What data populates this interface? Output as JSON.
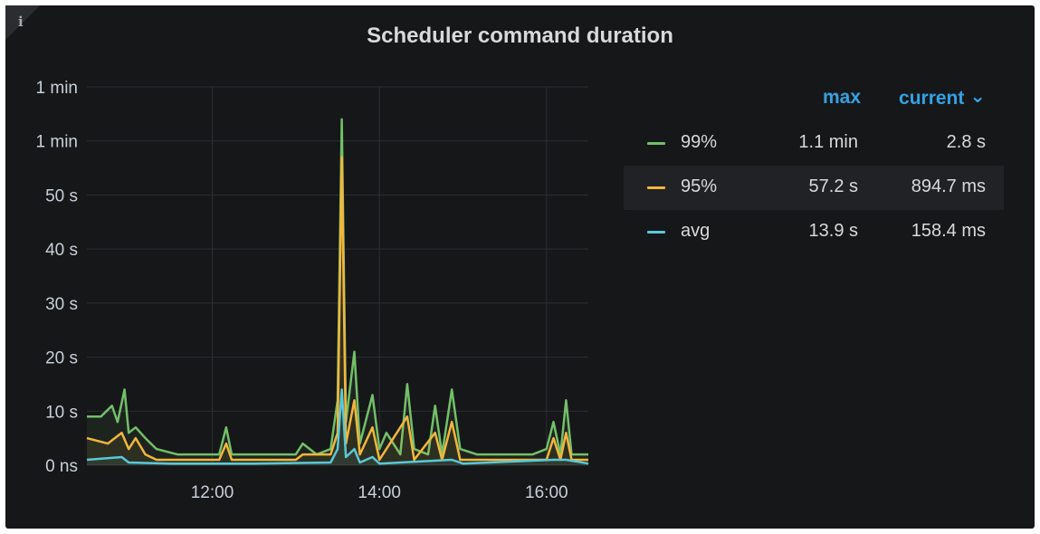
{
  "panel": {
    "title": "Scheduler command duration",
    "info_icon": "i"
  },
  "legend": {
    "headers": {
      "max": "max",
      "current": "current"
    },
    "sort_icon": "chevron-down-icon",
    "rows": [
      {
        "name": "99%",
        "color": "#73bf69",
        "max": "1.1 min",
        "current": "2.8 s"
      },
      {
        "name": "95%",
        "color": "#f2b63c",
        "max": "57.2 s",
        "current": "894.7 ms"
      },
      {
        "name": "avg",
        "color": "#5ac8d8",
        "max": "13.9 s",
        "current": "158.4 ms"
      }
    ]
  },
  "chart_data": {
    "type": "line",
    "y_tick_labels": [
      "0 ns",
      "10 s",
      "20 s",
      "30 s",
      "40 s",
      "50 s",
      "1 min",
      "1 min"
    ],
    "x_tick_labels": [
      "12:00",
      "14:00",
      "16:00"
    ],
    "x_range": [
      "10:30",
      "16:30"
    ],
    "ylim_seconds": [
      0,
      70
    ],
    "grid": true,
    "legend_placement": "right",
    "series": [
      {
        "name": "99%",
        "color": "#73bf69",
        "points": [
          [
            "10:30",
            9
          ],
          [
            "10:40",
            9
          ],
          [
            "10:48",
            11
          ],
          [
            "10:52",
            8
          ],
          [
            "10:57",
            14
          ],
          [
            "11:00",
            6
          ],
          [
            "11:05",
            7
          ],
          [
            "11:12",
            5
          ],
          [
            "11:20",
            3
          ],
          [
            "11:35",
            2
          ],
          [
            "11:50",
            2
          ],
          [
            "12:05",
            2
          ],
          [
            "12:10",
            7
          ],
          [
            "12:14",
            2
          ],
          [
            "12:30",
            2
          ],
          [
            "12:50",
            2
          ],
          [
            "13:00",
            2
          ],
          [
            "13:05",
            4
          ],
          [
            "13:15",
            2
          ],
          [
            "13:25",
            3
          ],
          [
            "13:30",
            12
          ],
          [
            "13:33",
            64
          ],
          [
            "13:36",
            8
          ],
          [
            "13:42",
            21
          ],
          [
            "13:46",
            4
          ],
          [
            "13:55",
            13
          ],
          [
            "14:00",
            3
          ],
          [
            "14:05",
            6
          ],
          [
            "14:15",
            2
          ],
          [
            "14:20",
            15
          ],
          [
            "14:25",
            3
          ],
          [
            "14:35",
            2
          ],
          [
            "14:40",
            11
          ],
          [
            "14:45",
            2
          ],
          [
            "14:52",
            14
          ],
          [
            "14:58",
            3
          ],
          [
            "15:10",
            2
          ],
          [
            "15:30",
            2
          ],
          [
            "15:50",
            2
          ],
          [
            "16:00",
            3
          ],
          [
            "16:05",
            8
          ],
          [
            "16:10",
            2
          ],
          [
            "16:14",
            12
          ],
          [
            "16:18",
            2
          ],
          [
            "16:30",
            2
          ]
        ]
      },
      {
        "name": "95%",
        "color": "#f2b63c",
        "points": [
          [
            "10:30",
            5
          ],
          [
            "10:45",
            4
          ],
          [
            "10:55",
            6
          ],
          [
            "11:00",
            3
          ],
          [
            "11:05",
            5
          ],
          [
            "11:12",
            2
          ],
          [
            "11:20",
            1
          ],
          [
            "11:40",
            1
          ],
          [
            "12:05",
            1
          ],
          [
            "12:10",
            4
          ],
          [
            "12:14",
            1
          ],
          [
            "12:50",
            1
          ],
          [
            "13:00",
            1
          ],
          [
            "13:05",
            2
          ],
          [
            "13:25",
            2
          ],
          [
            "13:30",
            6
          ],
          [
            "13:33",
            57
          ],
          [
            "13:36",
            4
          ],
          [
            "13:42",
            12
          ],
          [
            "13:46",
            2
          ],
          [
            "13:55",
            7
          ],
          [
            "14:00",
            1
          ],
          [
            "14:05",
            3
          ],
          [
            "14:20",
            9
          ],
          [
            "14:25",
            1
          ],
          [
            "14:40",
            6
          ],
          [
            "14:45",
            1
          ],
          [
            "14:52",
            8
          ],
          [
            "14:58",
            1
          ],
          [
            "15:30",
            1
          ],
          [
            "16:00",
            1
          ],
          [
            "16:05",
            5
          ],
          [
            "16:10",
            1
          ],
          [
            "16:14",
            6
          ],
          [
            "16:18",
            1
          ],
          [
            "16:30",
            1
          ]
        ]
      },
      {
        "name": "avg",
        "color": "#5ac8d8",
        "points": [
          [
            "10:30",
            1
          ],
          [
            "10:55",
            1.5
          ],
          [
            "11:00",
            0.5
          ],
          [
            "11:30",
            0.3
          ],
          [
            "12:30",
            0.3
          ],
          [
            "13:25",
            0.5
          ],
          [
            "13:30",
            3
          ],
          [
            "13:33",
            14
          ],
          [
            "13:36",
            1.5
          ],
          [
            "13:42",
            3
          ],
          [
            "13:46",
            0.5
          ],
          [
            "13:55",
            1.5
          ],
          [
            "14:00",
            0.3
          ],
          [
            "14:52",
            1
          ],
          [
            "15:00",
            0.3
          ],
          [
            "16:05",
            1
          ],
          [
            "16:14",
            1
          ],
          [
            "16:30",
            0.3
          ]
        ]
      }
    ]
  }
}
